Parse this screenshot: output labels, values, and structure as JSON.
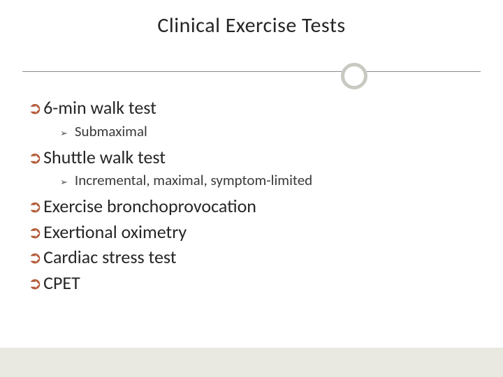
{
  "slide": {
    "title": "Clinical Exercise Tests",
    "title_color": "#262626",
    "title_fontsize": 30,
    "accent_color": "#b35a38",
    "ring_color": "#c9c9c2",
    "line_color": "#8a8a8a",
    "bottom_bar_color": "#e9e9e1",
    "background_color": "#ffffff",
    "main_bullet_glyph": "➲",
    "sub_bullet_glyph": "➢",
    "items": [
      {
        "text": "6-min walk test",
        "sub": [
          {
            "text": "Submaximal"
          }
        ]
      },
      {
        "text": "Shuttle walk test",
        "sub": [
          {
            "text": "Incremental, maximal, symptom-limited"
          }
        ]
      },
      {
        "text": "Exercise bronchoprovocation",
        "sub": []
      },
      {
        "text": "Exertional oximetry",
        "sub": []
      },
      {
        "text": "Cardiac stress test",
        "sub": []
      },
      {
        "text": "CPET",
        "sub": []
      }
    ]
  }
}
